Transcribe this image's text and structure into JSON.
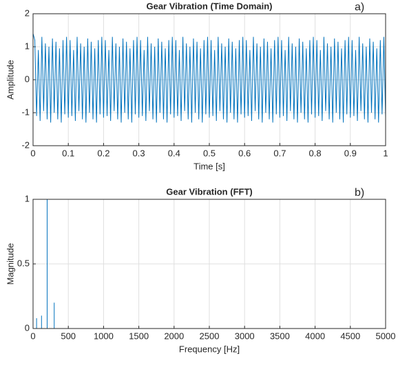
{
  "chart_data": [
    {
      "type": "line",
      "title": "Gear Vibration (Time Domain)",
      "annotation": "a)",
      "xlabel": "Time [s]",
      "ylabel": "Amplitude",
      "color": "#0072bd",
      "grid": true,
      "xlim": [
        0,
        1
      ],
      "xticks": [
        0,
        0.1,
        0.2,
        0.3,
        0.4,
        0.5,
        0.6,
        0.7,
        0.8,
        0.9,
        1
      ],
      "ylim": [
        -2,
        2
      ],
      "yticks": [
        -2,
        -1,
        0,
        1,
        2
      ],
      "x": [
        0,
        0.005,
        0.01,
        0.015,
        0.02,
        0.025,
        0.03,
        0.035,
        0.04,
        0.045,
        0.05,
        0.055,
        0.06,
        0.065,
        0.07,
        0.075,
        0.08,
        0.085,
        0.09,
        0.095,
        0.1,
        0.105,
        0.11,
        0.115,
        0.12,
        0.125,
        0.13,
        0.135,
        0.14,
        0.145,
        0.15,
        0.155,
        0.16,
        0.165,
        0.17,
        0.175,
        0.18,
        0.185,
        0.19,
        0.195,
        0.2,
        0.205,
        0.21,
        0.215,
        0.22,
        0.225,
        0.23,
        0.235,
        0.24,
        0.245,
        0.25,
        0.255,
        0.26,
        0.265,
        0.27,
        0.275,
        0.28,
        0.285,
        0.29,
        0.295,
        0.3,
        0.305,
        0.31,
        0.315,
        0.32,
        0.325,
        0.33,
        0.335,
        0.34,
        0.345,
        0.35,
        0.355,
        0.36,
        0.365,
        0.37,
        0.375,
        0.38,
        0.385,
        0.39,
        0.395,
        0.4,
        0.405,
        0.41,
        0.415,
        0.42,
        0.425,
        0.43,
        0.435,
        0.44,
        0.445,
        0.45,
        0.455,
        0.46,
        0.465,
        0.47,
        0.475,
        0.48,
        0.485,
        0.49,
        0.495,
        0.5,
        0.505,
        0.51,
        0.515,
        0.52,
        0.525,
        0.53,
        0.535,
        0.54,
        0.545,
        0.55,
        0.555,
        0.56,
        0.565,
        0.57,
        0.575,
        0.58,
        0.585,
        0.59,
        0.595,
        0.6,
        0.605,
        0.61,
        0.615,
        0.62,
        0.625,
        0.63,
        0.635,
        0.64,
        0.645,
        0.65,
        0.655,
        0.66,
        0.665,
        0.67,
        0.675,
        0.68,
        0.685,
        0.69,
        0.695,
        0.7,
        0.705,
        0.71,
        0.715,
        0.72,
        0.725,
        0.73,
        0.735,
        0.74,
        0.745,
        0.75,
        0.755,
        0.76,
        0.765,
        0.77,
        0.775,
        0.78,
        0.785,
        0.79,
        0.795,
        0.8,
        0.805,
        0.81,
        0.815,
        0.82,
        0.825,
        0.83,
        0.835,
        0.84,
        0.845,
        0.85,
        0.855,
        0.86,
        0.865,
        0.87,
        0.875,
        0.88,
        0.885,
        0.89,
        0.895,
        0.9,
        0.905,
        0.91,
        0.915,
        0.92,
        0.925,
        0.93,
        0.935,
        0.94,
        0.945,
        0.95,
        0.955,
        0.96,
        0.965,
        0.97,
        0.975,
        0.98,
        0.985,
        0.99,
        0.995,
        1
      ],
      "values": [
        1.4,
        1.2,
        -1.1,
        0.9,
        -1.25,
        1.3,
        -0.95,
        1.1,
        -1.2,
        1.0,
        -1.3,
        1.25,
        -1.0,
        1.15,
        -1.2,
        0.95,
        -1.3,
        1.2,
        -1.05,
        1.3,
        -1.15,
        1.2,
        -1.1,
        0.9,
        -1.25,
        1.3,
        -0.95,
        1.1,
        -1.2,
        1.0,
        -1.3,
        1.25,
        -1.0,
        1.15,
        -1.2,
        0.95,
        -1.3,
        1.2,
        -1.05,
        1.3,
        -1.15,
        1.2,
        -1.1,
        0.9,
        -1.25,
        1.3,
        -0.95,
        1.1,
        -1.2,
        1.0,
        -1.3,
        1.25,
        -1.0,
        1.15,
        -1.2,
        0.95,
        -1.3,
        1.2,
        -1.05,
        1.3,
        -1.15,
        1.2,
        -1.1,
        0.9,
        -1.25,
        1.3,
        -0.95,
        1.1,
        -1.2,
        1.0,
        -1.3,
        1.25,
        -1.0,
        1.15,
        -1.2,
        0.95,
        -1.3,
        1.2,
        -1.05,
        1.3,
        -1.15,
        1.2,
        -1.1,
        0.9,
        -1.25,
        1.3,
        -0.95,
        1.1,
        -1.2,
        1.0,
        -1.3,
        1.25,
        -1.0,
        1.15,
        -1.2,
        0.95,
        -1.3,
        1.2,
        -1.05,
        1.3,
        -1.15,
        1.2,
        -1.1,
        0.9,
        -1.25,
        1.3,
        -0.95,
        1.1,
        -1.2,
        1.0,
        -1.3,
        1.25,
        -1.0,
        1.15,
        -1.2,
        0.95,
        -1.3,
        1.2,
        -1.05,
        1.3,
        -1.15,
        1.2,
        -1.1,
        0.9,
        -1.25,
        1.3,
        -0.95,
        1.1,
        -1.2,
        1.0,
        -1.3,
        1.25,
        -1.0,
        1.15,
        -1.2,
        0.95,
        -1.3,
        1.2,
        -1.05,
        1.3,
        -1.15,
        1.2,
        -1.1,
        0.9,
        -1.25,
        1.3,
        -0.95,
        1.1,
        -1.2,
        1.0,
        -1.3,
        1.25,
        -1.0,
        1.15,
        -1.2,
        0.95,
        -1.3,
        1.2,
        -1.05,
        1.3,
        -1.15,
        1.2,
        -1.1,
        0.9,
        -1.25,
        1.3,
        -0.95,
        1.1,
        -1.2,
        1.0,
        -1.3,
        1.25,
        -1.0,
        1.15,
        -1.2,
        0.95,
        -1.3,
        1.2,
        -1.05,
        1.3,
        -1.15,
        1.2,
        -1.1,
        0.9,
        -1.25,
        1.3,
        -0.95,
        1.1,
        -1.2,
        1.0,
        -1.3,
        1.25,
        -1.0,
        1.15,
        -1.2,
        0.95,
        -1.3,
        1.2,
        -1.05,
        1.3,
        -1.15
      ]
    },
    {
      "type": "line",
      "title": "Gear Vibration (FFT)",
      "annotation": "b)",
      "xlabel": "Frequency [Hz]",
      "ylabel": "Magnitude",
      "color": "#0072bd",
      "grid": true,
      "xlim": [
        0,
        5000
      ],
      "xticks": [
        0,
        500,
        1000,
        1500,
        2000,
        2500,
        3000,
        3500,
        4000,
        4500,
        5000
      ],
      "ylim": [
        0,
        1
      ],
      "yticks": [
        0,
        0.5,
        1
      ],
      "x": [
        0,
        50,
        50,
        50,
        120,
        120,
        120,
        200,
        200,
        200,
        300,
        300,
        300,
        5000
      ],
      "values": [
        0,
        0,
        0.08,
        0,
        0,
        0.1,
        0,
        0,
        1,
        0,
        0,
        0.2,
        0,
        0
      ]
    }
  ]
}
